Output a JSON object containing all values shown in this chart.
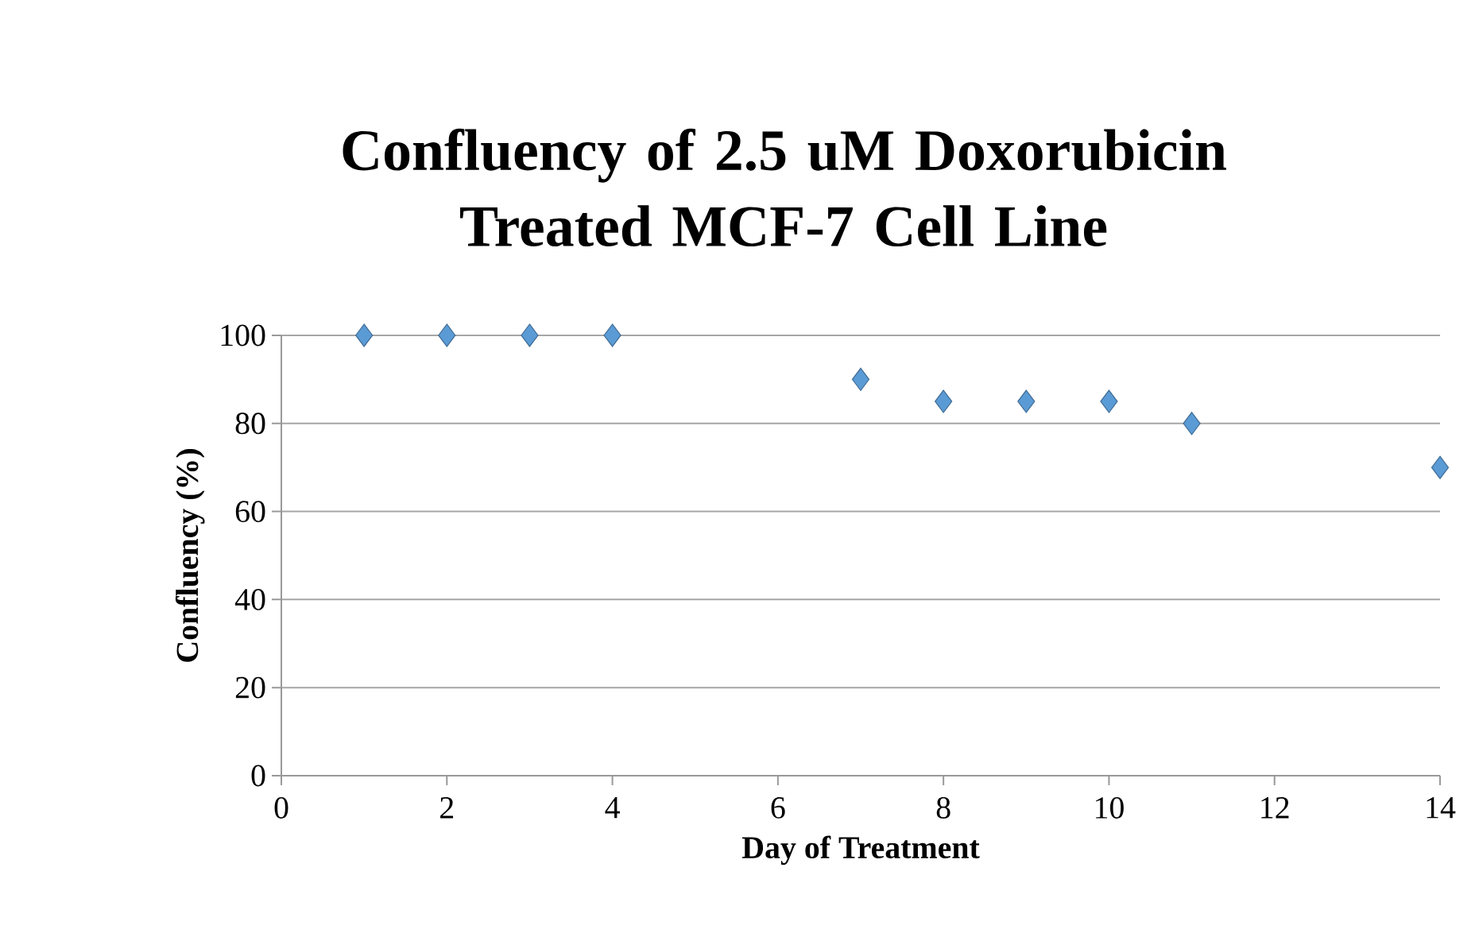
{
  "chart_data": {
    "type": "scatter",
    "title": "Confluency of 2.5 uM Doxorubicin Treated MCF-7 Cell Line",
    "xlabel": "Day of Treatment",
    "ylabel": "Confluency (%)",
    "x": [
      1,
      2,
      3,
      4,
      7,
      8,
      9,
      10,
      11,
      14
    ],
    "series": [
      {
        "color": "#5b9bd5",
        "values": [
          100,
          100,
          100,
          100,
          90,
          85,
          85,
          85,
          80,
          70
        ]
      }
    ],
    "xlim": [
      0,
      14
    ],
    "xticks": [
      0,
      2,
      4,
      6,
      8,
      10,
      12,
      14
    ],
    "ylim": [
      0,
      100
    ],
    "yticks": [
      0,
      20,
      40,
      60,
      80,
      100
    ],
    "grid": "y",
    "marker": "diamond"
  }
}
